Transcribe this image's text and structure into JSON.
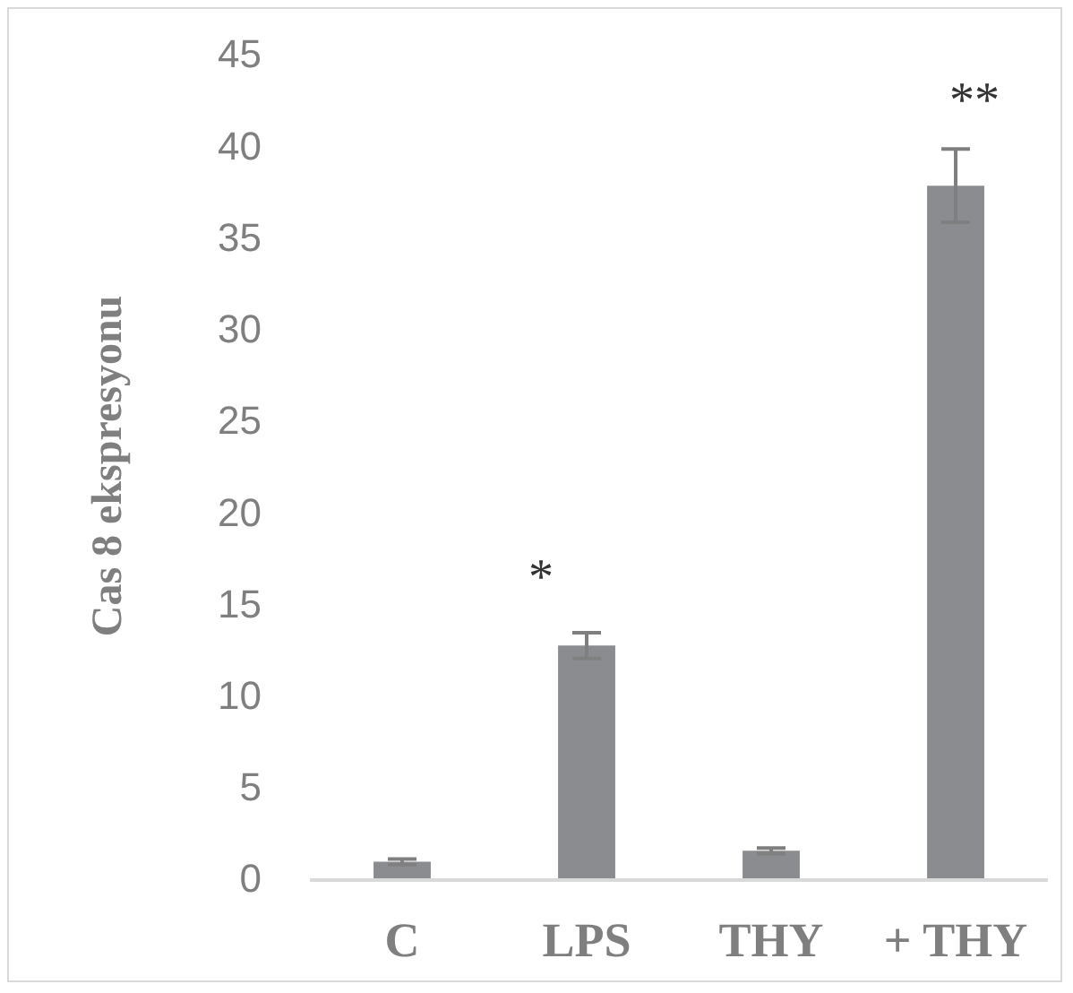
{
  "chart_data": {
    "type": "bar",
    "ylabel": "Cas 8 ekspresyonu",
    "categories": [
      "C",
      "LPS",
      "THY",
      "+ THY"
    ],
    "values": [
      0.9,
      12.7,
      1.5,
      37.8
    ],
    "errors": [
      0.15,
      0.7,
      0.15,
      2.0
    ],
    "color": "#8b8c8f",
    "ylim": [
      0,
      45
    ],
    "yticks": [
      0,
      5,
      10,
      15,
      20,
      25,
      30,
      35,
      40,
      45
    ],
    "annotations": [
      "*",
      "**"
    ]
  }
}
